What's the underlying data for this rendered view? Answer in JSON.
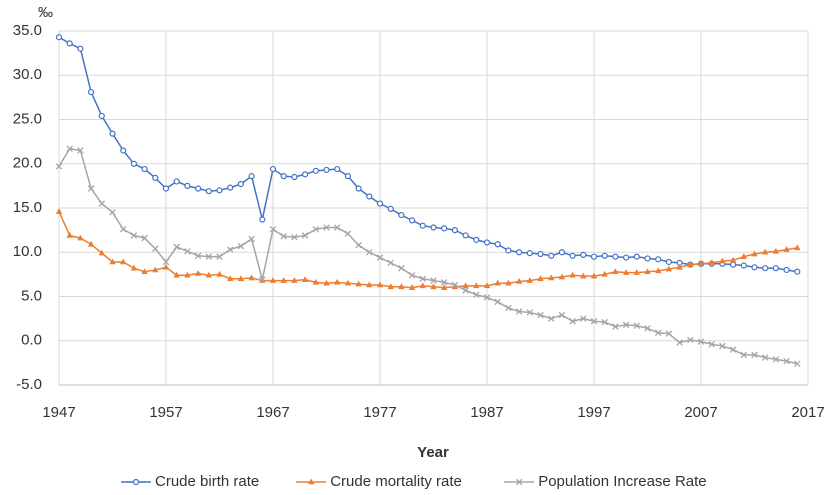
{
  "chart_data": {
    "type": "line",
    "y_unit": "‰",
    "xlabel": "Year",
    "x": [
      1947,
      1948,
      1949,
      1950,
      1951,
      1952,
      1953,
      1954,
      1955,
      1956,
      1957,
      1958,
      1959,
      1960,
      1961,
      1962,
      1963,
      1964,
      1965,
      1966,
      1967,
      1968,
      1969,
      1970,
      1971,
      1972,
      1973,
      1974,
      1975,
      1976,
      1977,
      1978,
      1979,
      1980,
      1981,
      1982,
      1983,
      1984,
      1985,
      1986,
      1987,
      1988,
      1989,
      1990,
      1991,
      1992,
      1993,
      1994,
      1995,
      1996,
      1997,
      1998,
      1999,
      2000,
      2001,
      2002,
      2003,
      2004,
      2005,
      2006,
      2007,
      2008,
      2009,
      2010,
      2011,
      2012,
      2013,
      2014,
      2015,
      2016
    ],
    "xlim": [
      1947,
      2017
    ],
    "xticks": [
      1947,
      1957,
      1967,
      1977,
      1987,
      1997,
      2007,
      2017
    ],
    "ylim": [
      -5,
      35
    ],
    "yticks": [
      {
        "value": -5,
        "label": "-5.0"
      },
      {
        "value": 0,
        "label": "0.0"
      },
      {
        "value": 5,
        "label": "5.0"
      },
      {
        "value": 10,
        "label": "10.0"
      },
      {
        "value": 15,
        "label": "15.0"
      },
      {
        "value": 20,
        "label": "20.0"
      },
      {
        "value": 25,
        "label": "25.0"
      },
      {
        "value": 30,
        "label": "30.0"
      },
      {
        "value": 35,
        "label": "35.0"
      }
    ],
    "grid": true,
    "legend": "bottom",
    "series": [
      {
        "name": "Crude birth rate",
        "color": "#4472c4",
        "marker": "circle",
        "values": [
          34.3,
          33.6,
          33.0,
          28.1,
          25.4,
          23.4,
          21.5,
          20.0,
          19.4,
          18.4,
          17.2,
          18.0,
          17.5,
          17.2,
          16.9,
          17.0,
          17.3,
          17.7,
          18.6,
          13.7,
          19.4,
          18.6,
          18.5,
          18.8,
          19.2,
          19.3,
          19.4,
          18.6,
          17.2,
          16.3,
          15.5,
          14.9,
          14.2,
          13.6,
          13.0,
          12.8,
          12.7,
          12.5,
          11.9,
          11.4,
          11.1,
          10.9,
          10.2,
          10.0,
          9.9,
          9.8,
          9.6,
          10.0,
          9.6,
          9.7,
          9.5,
          9.6,
          9.5,
          9.4,
          9.5,
          9.3,
          9.2,
          8.9,
          8.8,
          8.6,
          8.7,
          8.7,
          8.7,
          8.6,
          8.5,
          8.3,
          8.2,
          8.2,
          8.0,
          7.8
        ]
      },
      {
        "name": "Crude mortality rate",
        "color": "#ed7d31",
        "marker": "triangle",
        "values": [
          14.6,
          11.9,
          11.6,
          10.9,
          9.9,
          8.9,
          8.9,
          8.2,
          7.8,
          8.0,
          8.3,
          7.4,
          7.4,
          7.6,
          7.4,
          7.5,
          7.0,
          7.0,
          7.1,
          6.8,
          6.8,
          6.8,
          6.8,
          6.9,
          6.6,
          6.5,
          6.6,
          6.5,
          6.4,
          6.3,
          6.3,
          6.1,
          6.1,
          6.0,
          6.2,
          6.1,
          6.0,
          6.1,
          6.2,
          6.2,
          6.2,
          6.5,
          6.5,
          6.7,
          6.8,
          7.0,
          7.1,
          7.2,
          7.4,
          7.3,
          7.3,
          7.5,
          7.8,
          7.7,
          7.7,
          7.8,
          7.9,
          8.1,
          8.3,
          8.6,
          8.7,
          8.8,
          9.0,
          9.1,
          9.5,
          9.8,
          10.0,
          10.1,
          10.3,
          10.5
        ]
      },
      {
        "name": "Population Increase Rate",
        "color": "#a5a5a5",
        "marker": "x",
        "values": [
          19.7,
          21.7,
          21.5,
          17.2,
          15.5,
          14.5,
          12.6,
          11.9,
          11.6,
          10.4,
          8.9,
          10.6,
          10.1,
          9.6,
          9.5,
          9.5,
          10.3,
          10.7,
          11.5,
          6.9,
          12.6,
          11.8,
          11.7,
          11.9,
          12.6,
          12.8,
          12.8,
          12.1,
          10.8,
          10.0,
          9.4,
          8.8,
          8.2,
          7.4,
          7.0,
          6.8,
          6.6,
          6.3,
          5.7,
          5.2,
          4.9,
          4.4,
          3.7,
          3.3,
          3.2,
          2.9,
          2.5,
          2.9,
          2.2,
          2.5,
          2.2,
          2.1,
          1.6,
          1.8,
          1.7,
          1.4,
          0.9,
          0.8,
          -0.2,
          0.1,
          -0.1,
          -0.4,
          -0.6,
          -1.0,
          -1.6,
          -1.6,
          -1.9,
          -2.1,
          -2.3,
          -2.6
        ]
      }
    ]
  }
}
